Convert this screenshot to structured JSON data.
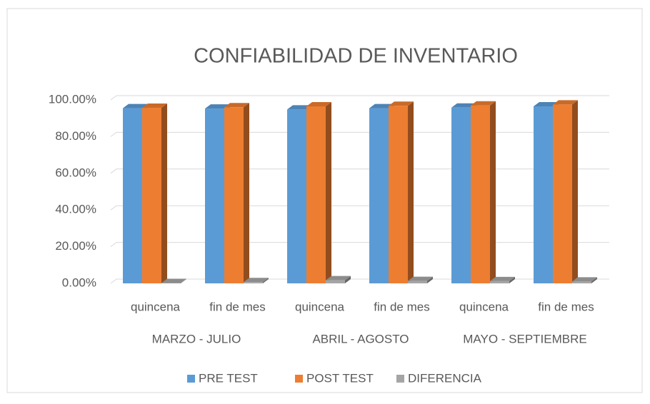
{
  "chart_data": {
    "type": "bar3d",
    "title": "CONFIABILIDAD DE INVENTARIO",
    "categories": [
      "quincena",
      "fin de mes",
      "quincena",
      "fin de mes",
      "quincena",
      "fin de mes"
    ],
    "groups": [
      "MARZO - JULIO",
      "ABRIL - AGOSTO",
      "MAYO - SEPTIEMBRE"
    ],
    "series": [
      {
        "name": "PRE TEST",
        "color": "#5b9bd5",
        "values": [
          95.5,
          95.3,
          94.8,
          95.5,
          95.8,
          96.5
        ]
      },
      {
        "name": "POST TEST",
        "color": "#ed7d31",
        "values": [
          95.7,
          96.0,
          96.5,
          96.8,
          97.0,
          97.5
        ]
      },
      {
        "name": "DIFERENCIA",
        "color": "#a5a5a5",
        "values": [
          0.2,
          0.7,
          1.7,
          1.3,
          1.2,
          1.0
        ]
      }
    ],
    "ylim": [
      0,
      100
    ],
    "yticks": [
      {
        "value": 0,
        "label": "0.00%"
      },
      {
        "value": 20,
        "label": "20.00%"
      },
      {
        "value": 40,
        "label": "40.00%"
      },
      {
        "value": 60,
        "label": "60.00%"
      },
      {
        "value": 80,
        "label": "80.00%"
      },
      {
        "value": 100,
        "label": "100.00%"
      }
    ],
    "grid": true,
    "legend": "bottom"
  }
}
